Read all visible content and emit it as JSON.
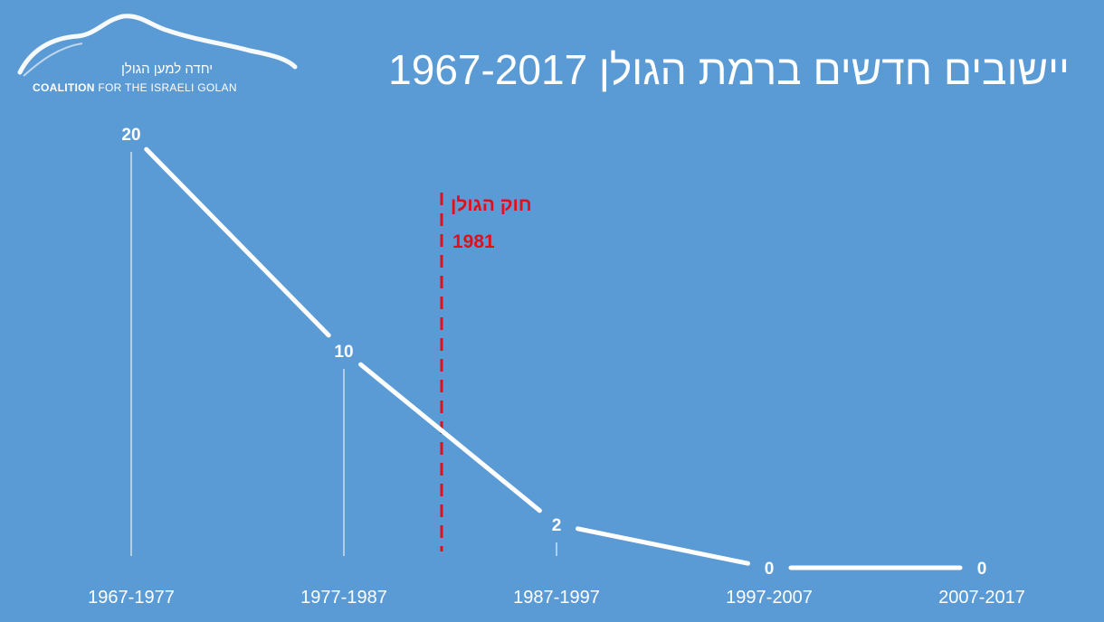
{
  "title": "יישובים חדשים ברמת הגולן 1967-2017",
  "logo": {
    "hebrew": "יחדה למען הגולן",
    "english_bold": "COALITION",
    "english_rest": " FOR THE ISRAELI GOLAN"
  },
  "colors": {
    "background": "#5b9bd5",
    "line": "#ffffff",
    "annotation": "#e0101a"
  },
  "chart_data": {
    "type": "line",
    "categories": [
      "1967-1977",
      "1977-1987",
      "1987-1997",
      "1997-2007",
      "2007-2017"
    ],
    "values": [
      20,
      10,
      2,
      0,
      0
    ],
    "data_labels": [
      "20",
      "10",
      "2",
      "0",
      "0"
    ],
    "ylim": [
      0,
      20
    ],
    "grid": false,
    "legend": "none",
    "annotation": {
      "label": "חוק הגולן",
      "year": "1981",
      "position_between": [
        "1977-1987",
        "1987-1997"
      ],
      "style": "dashed-vertical-line"
    }
  }
}
